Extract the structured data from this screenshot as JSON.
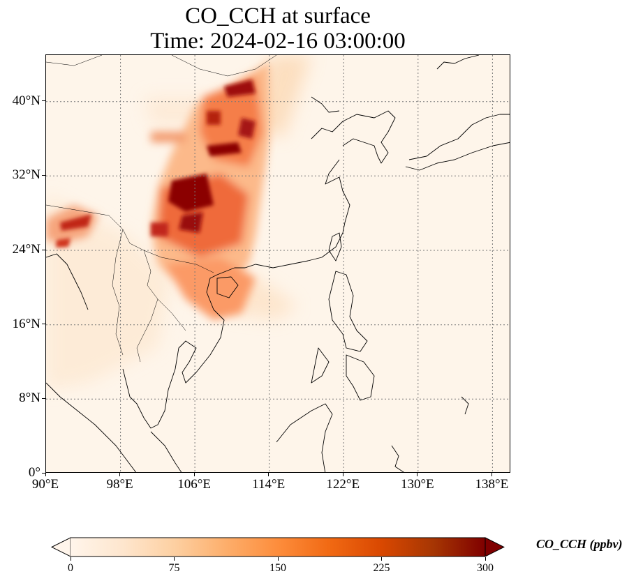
{
  "title": {
    "line1": "CO_CCH at surface",
    "line2": "Time: 2024-02-16 03:00:00"
  },
  "map": {
    "lon_range": [
      90,
      140
    ],
    "lat_range": [
      0,
      45
    ],
    "lat_ticks": [
      {
        "value": 40,
        "label": "40°N"
      },
      {
        "value": 32,
        "label": "32°N"
      },
      {
        "value": 24,
        "label": "24°N"
      },
      {
        "value": 16,
        "label": "16°N"
      },
      {
        "value": 8,
        "label": "8°N"
      },
      {
        "value": 0,
        "label": "0°"
      }
    ],
    "lon_ticks": [
      {
        "value": 90,
        "label": "90°E"
      },
      {
        "value": 98,
        "label": "98°E"
      },
      {
        "value": 106,
        "label": "106°E"
      },
      {
        "value": 114,
        "label": "114°E"
      },
      {
        "value": 122,
        "label": "122°E"
      },
      {
        "value": 130,
        "label": "130°E"
      },
      {
        "value": 138,
        "label": "138°E"
      }
    ],
    "gridlines": true
  },
  "colorbar": {
    "label": "CO_CCH (ppbv)",
    "range": [
      0,
      300
    ],
    "ticks": [
      "0",
      "75",
      "150",
      "225",
      "300"
    ],
    "colors": [
      "#fff5eb",
      "#fee6ce",
      "#fdd0a2",
      "#fdae6b",
      "#fd8d3c",
      "#f16913",
      "#d94801",
      "#a63603",
      "#7f0000"
    ],
    "extend": "both"
  }
}
